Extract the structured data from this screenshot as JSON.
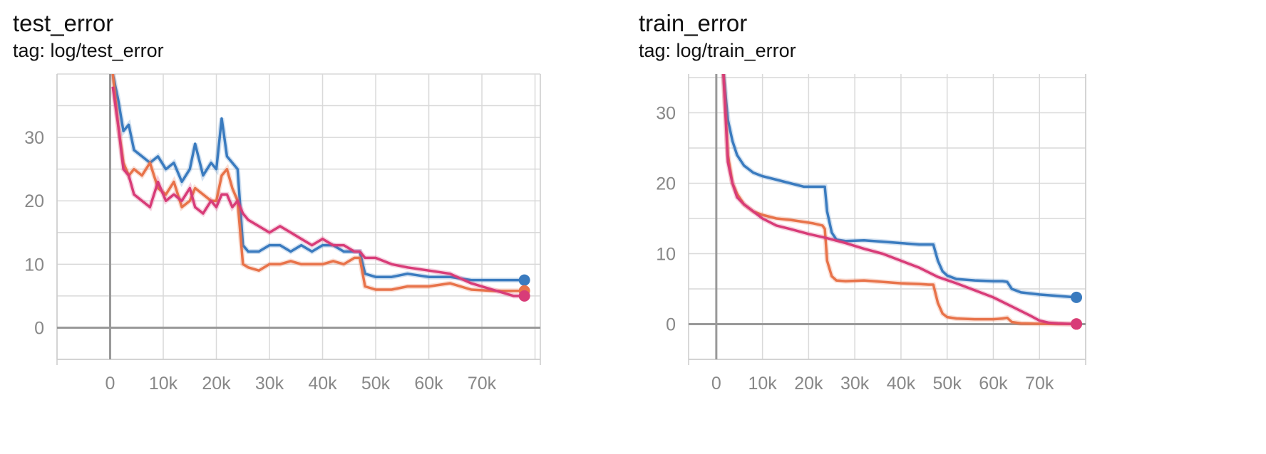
{
  "chart_data": [
    {
      "type": "line",
      "title": "test_error",
      "subtitle": "tag: log/test_error",
      "xlabel": "",
      "ylabel": "",
      "xlim": [
        -10000,
        81000
      ],
      "ylim": [
        -5,
        40
      ],
      "xticks": [
        "0",
        "10k",
        "20k",
        "30k",
        "40k",
        "50k",
        "60k",
        "70k"
      ],
      "xtick_values": [
        0,
        10000,
        20000,
        30000,
        40000,
        50000,
        60000,
        70000
      ],
      "yticks": [
        "0",
        "10",
        "20",
        "30"
      ],
      "ytick_values": [
        0,
        10,
        20,
        30
      ],
      "grid": true,
      "series": [
        {
          "color": "#3a7bbf",
          "x": [
            500,
            1500,
            2500,
            3500,
            4500,
            6000,
            7500,
            9000,
            10500,
            12000,
            13500,
            15000,
            16000,
            17500,
            19000,
            20000,
            21000,
            22000,
            23000,
            24000,
            25000,
            26000,
            28000,
            30000,
            32000,
            34000,
            36000,
            38000,
            40000,
            42000,
            44000,
            46000,
            47000,
            48000,
            50000,
            53000,
            56000,
            60000,
            64000,
            68000,
            72000,
            76000,
            78000
          ],
          "y": [
            40,
            36,
            31,
            32,
            28,
            27,
            26,
            27,
            25,
            26,
            23,
            25,
            29,
            24,
            26,
            25,
            33,
            27,
            26,
            25,
            13,
            12,
            12,
            13,
            13,
            12,
            13,
            12,
            13,
            13,
            12,
            12,
            12,
            8.5,
            8,
            8,
            8.5,
            8,
            8,
            7.5,
            7.5,
            7.5,
            7.5
          ]
        },
        {
          "color": "#e8734a",
          "x": [
            500,
            1500,
            2500,
            3500,
            4500,
            6000,
            7500,
            9000,
            10500,
            12000,
            13500,
            15000,
            16000,
            17500,
            19000,
            20000,
            21000,
            22000,
            23000,
            24000,
            25000,
            26000,
            28000,
            30000,
            32000,
            34000,
            36000,
            38000,
            40000,
            42000,
            44000,
            46000,
            47000,
            48000,
            50000,
            53000,
            56000,
            60000,
            64000,
            68000,
            72000,
            76000,
            78000
          ],
          "y": [
            40,
            32,
            26,
            24,
            25,
            24,
            26,
            22,
            21,
            23,
            19,
            20,
            22,
            21,
            20,
            20,
            24,
            25,
            22,
            20,
            10,
            9.5,
            9,
            10,
            10,
            10.5,
            10,
            10,
            10,
            10.5,
            10,
            11,
            11,
            6.5,
            6,
            6,
            6.5,
            6.5,
            7,
            6,
            5.8,
            5.8,
            5.8
          ]
        },
        {
          "color": "#d83c78",
          "x": [
            500,
            1500,
            2500,
            3500,
            4500,
            6000,
            7500,
            9000,
            10500,
            12000,
            13500,
            15000,
            16000,
            17500,
            19000,
            20000,
            21000,
            22000,
            23000,
            24000,
            25000,
            26000,
            28000,
            30000,
            32000,
            34000,
            36000,
            38000,
            40000,
            42000,
            44000,
            46000,
            47000,
            48000,
            50000,
            53000,
            56000,
            60000,
            64000,
            68000,
            72000,
            76000,
            78000
          ],
          "y": [
            38,
            32,
            25,
            24,
            21,
            20,
            19,
            23,
            20,
            21,
            20,
            22,
            19,
            18,
            20,
            19,
            21,
            21,
            19,
            20,
            18,
            17,
            16,
            15,
            16,
            15,
            14,
            13,
            14,
            13,
            13,
            12,
            12,
            11,
            11,
            10,
            9.5,
            9,
            8.5,
            7,
            6,
            5,
            5
          ]
        }
      ]
    },
    {
      "type": "line",
      "title": "train_error",
      "subtitle": "tag: log/train_error",
      "xlabel": "",
      "ylabel": "",
      "xlim": [
        -6000,
        80000
      ],
      "ylim": [
        -5,
        35.5
      ],
      "xticks": [
        "0",
        "10k",
        "20k",
        "30k",
        "40k",
        "50k",
        "60k",
        "70k"
      ],
      "xtick_values": [
        0,
        10000,
        20000,
        30000,
        40000,
        50000,
        60000,
        70000
      ],
      "yticks": [
        "0",
        "10",
        "20",
        "30"
      ],
      "ytick_values": [
        0,
        10,
        20,
        30
      ],
      "grid": true,
      "series": [
        {
          "color": "#3a7bbf",
          "x": [
            1500,
            2500,
            3500,
            4500,
            6000,
            8000,
            10000,
            13000,
            16000,
            19000,
            20000,
            22000,
            23500,
            24000,
            25000,
            26000,
            28000,
            32000,
            36000,
            40000,
            44000,
            46000,
            47000,
            48000,
            49000,
            50000,
            52000,
            56000,
            60000,
            62000,
            63000,
            64000,
            66000,
            70000,
            74000,
            78000
          ],
          "y": [
            36,
            29,
            26,
            24,
            22.5,
            21.5,
            21,
            20.5,
            20,
            19.5,
            19.5,
            19.5,
            19.5,
            16,
            13,
            12,
            11.8,
            11.9,
            11.7,
            11.5,
            11.3,
            11.3,
            11.3,
            9,
            7.5,
            6.9,
            6.4,
            6.2,
            6.1,
            6.1,
            6,
            5,
            4.5,
            4.2,
            4,
            3.8
          ]
        },
        {
          "color": "#e8734a",
          "x": [
            1500,
            2500,
            3500,
            4500,
            6000,
            8000,
            10000,
            13000,
            16000,
            19000,
            21000,
            23000,
            23500,
            24000,
            25000,
            26000,
            28000,
            32000,
            36000,
            40000,
            44000,
            46000,
            47000,
            48000,
            49000,
            50000,
            52000,
            56000,
            60000,
            62000,
            63000,
            64000,
            66000,
            70000,
            74000,
            78000
          ],
          "y": [
            36,
            24,
            20,
            18.5,
            17,
            16,
            15.5,
            15,
            14.8,
            14.5,
            14.3,
            14,
            13.5,
            9,
            6.8,
            6.2,
            6.1,
            6.2,
            6,
            5.8,
            5.7,
            5.6,
            5.6,
            3,
            1.5,
            1,
            0.8,
            0.7,
            0.7,
            0.8,
            0.9,
            0.3,
            0.1,
            0.05,
            0.02,
            0.02
          ]
        },
        {
          "color": "#d83c78",
          "x": [
            1500,
            2500,
            3500,
            4500,
            6000,
            8000,
            10000,
            13000,
            16000,
            20000,
            24000,
            28000,
            32000,
            36000,
            40000,
            44000,
            48000,
            52000,
            56000,
            60000,
            64000,
            68000,
            70000,
            72000,
            74000,
            76000,
            78000
          ],
          "y": [
            36,
            23,
            20,
            18,
            17,
            16,
            15,
            14,
            13.5,
            12.8,
            12.2,
            11.5,
            10.7,
            10,
            9,
            8,
            6.7,
            5.8,
            4.8,
            3.8,
            2.5,
            1.2,
            0.5,
            0.2,
            0.1,
            0.05,
            0.02
          ]
        }
      ]
    }
  ]
}
